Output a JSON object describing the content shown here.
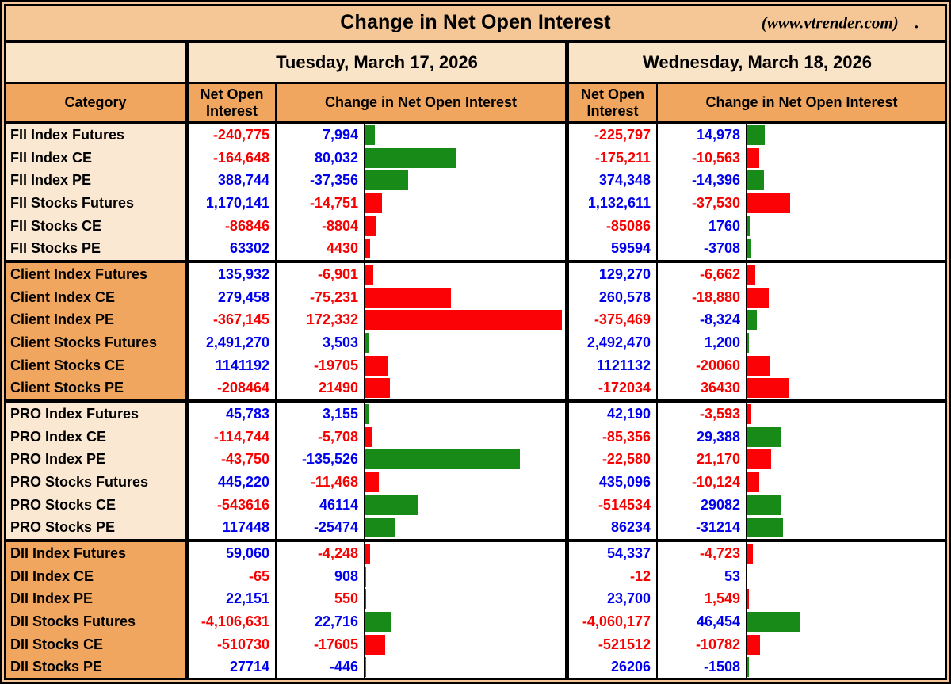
{
  "title": "Change in Net Open Interest",
  "source": "(www.vtrender.com)",
  "source_suffix": ".",
  "days": [
    {
      "label": "Tuesday, March 17, 2026"
    },
    {
      "label": "Wednesday, March 18, 2026"
    }
  ],
  "columns": {
    "category": "Category",
    "noi": "Net Open Interest",
    "change": "Change in Net Open Interest"
  },
  "colors": {
    "blue": "#0000EE",
    "red": "#F70000",
    "barGreen": "#188A18",
    "barRed": "#FB0207",
    "titleBg": "#F6C796",
    "dateBg": "#FAE4C8",
    "headerBg": "#F0A65E",
    "catLight": "#FAE8D2",
    "catOrange": "#F1A660"
  },
  "rows": [
    {
      "cat": "FII Index Futures",
      "grp": "light",
      "t": {
        "noi": "-240,775",
        "noiC": "r",
        "chg": "7,994",
        "chgC": "b",
        "val": 7994,
        "bar": "g"
      },
      "w": {
        "noi": "-225,797",
        "noiC": "r",
        "chg": "14,978",
        "chgC": "b",
        "val": 14978,
        "bar": "g"
      }
    },
    {
      "cat": "FII Index CE",
      "grp": "light",
      "t": {
        "noi": "-164,648",
        "noiC": "r",
        "chg": "80,032",
        "chgC": "b",
        "val": 80032,
        "bar": "g"
      },
      "w": {
        "noi": "-175,211",
        "noiC": "r",
        "chg": "-10,563",
        "chgC": "r",
        "val": -10563,
        "bar": "r"
      }
    },
    {
      "cat": "FII Index PE",
      "grp": "light",
      "t": {
        "noi": "388,744",
        "noiC": "b",
        "chg": "-37,356",
        "chgC": "b",
        "val": -37356,
        "bar": "g"
      },
      "w": {
        "noi": "374,348",
        "noiC": "b",
        "chg": "-14,396",
        "chgC": "b",
        "val": -14396,
        "bar": "g"
      }
    },
    {
      "cat": "FII Stocks Futures",
      "grp": "light",
      "t": {
        "noi": "1,170,141",
        "noiC": "b",
        "chg": "-14,751",
        "chgC": "r",
        "val": -14751,
        "bar": "r"
      },
      "w": {
        "noi": "1,132,611",
        "noiC": "b",
        "chg": "-37,530",
        "chgC": "r",
        "val": -37530,
        "bar": "r"
      }
    },
    {
      "cat": "FII Stocks CE",
      "grp": "light",
      "t": {
        "noi": "-86846",
        "noiC": "r",
        "chg": "-8804",
        "chgC": "r",
        "val": -8804,
        "bar": "r"
      },
      "w": {
        "noi": "-85086",
        "noiC": "r",
        "chg": "1760",
        "chgC": "b",
        "val": 1760,
        "bar": "g"
      }
    },
    {
      "cat": "FII Stocks PE",
      "grp": "light",
      "t": {
        "noi": "63302",
        "noiC": "b",
        "chg": "4430",
        "chgC": "r",
        "val": 4430,
        "bar": "r"
      },
      "w": {
        "noi": "59594",
        "noiC": "b",
        "chg": "-3708",
        "chgC": "b",
        "val": -3708,
        "bar": "g"
      }
    },
    {
      "cat": "Client Index Futures",
      "grp": "orange",
      "t": {
        "noi": "135,932",
        "noiC": "b",
        "chg": "-6,901",
        "chgC": "r",
        "val": -6901,
        "bar": "r"
      },
      "w": {
        "noi": "129,270",
        "noiC": "b",
        "chg": "-6,662",
        "chgC": "r",
        "val": -6662,
        "bar": "r"
      }
    },
    {
      "cat": "Client Index CE",
      "grp": "orange",
      "t": {
        "noi": "279,458",
        "noiC": "b",
        "chg": "-75,231",
        "chgC": "r",
        "val": -75231,
        "bar": "r"
      },
      "w": {
        "noi": "260,578",
        "noiC": "b",
        "chg": "-18,880",
        "chgC": "r",
        "val": -18880,
        "bar": "r"
      }
    },
    {
      "cat": "Client Index PE",
      "grp": "orange",
      "t": {
        "noi": "-367,145",
        "noiC": "r",
        "chg": "172,332",
        "chgC": "r",
        "val": 172332,
        "bar": "r"
      },
      "w": {
        "noi": "-375,469",
        "noiC": "r",
        "chg": "-8,324",
        "chgC": "b",
        "val": -8324,
        "bar": "g"
      }
    },
    {
      "cat": "Client Stocks Futures",
      "grp": "orange",
      "t": {
        "noi": "2,491,270",
        "noiC": "b",
        "chg": "3,503",
        "chgC": "b",
        "val": 3503,
        "bar": "g"
      },
      "w": {
        "noi": "2,492,470",
        "noiC": "b",
        "chg": "1,200",
        "chgC": "b",
        "val": 1200,
        "bar": "g"
      }
    },
    {
      "cat": "Client Stocks CE",
      "grp": "orange",
      "t": {
        "noi": "1141192",
        "noiC": "b",
        "chg": "-19705",
        "chgC": "r",
        "val": -19705,
        "bar": "r"
      },
      "w": {
        "noi": "1121132",
        "noiC": "b",
        "chg": "-20060",
        "chgC": "r",
        "val": -20060,
        "bar": "r"
      }
    },
    {
      "cat": "Client Stocks PE",
      "grp": "orange",
      "t": {
        "noi": "-208464",
        "noiC": "r",
        "chg": "21490",
        "chgC": "r",
        "val": 21490,
        "bar": "r"
      },
      "w": {
        "noi": "-172034",
        "noiC": "r",
        "chg": "36430",
        "chgC": "r",
        "val": 36430,
        "bar": "r"
      }
    },
    {
      "cat": "PRO Index Futures",
      "grp": "light",
      "t": {
        "noi": "45,783",
        "noiC": "b",
        "chg": "3,155",
        "chgC": "b",
        "val": 3155,
        "bar": "g"
      },
      "w": {
        "noi": "42,190",
        "noiC": "b",
        "chg": "-3,593",
        "chgC": "r",
        "val": -3593,
        "bar": "r"
      }
    },
    {
      "cat": "PRO Index CE",
      "grp": "light",
      "t": {
        "noi": "-114,744",
        "noiC": "r",
        "chg": "-5,708",
        "chgC": "r",
        "val": -5708,
        "bar": "r"
      },
      "w": {
        "noi": "-85,356",
        "noiC": "r",
        "chg": "29,388",
        "chgC": "b",
        "val": 29388,
        "bar": "g"
      }
    },
    {
      "cat": "PRO Index PE",
      "grp": "light",
      "t": {
        "noi": "-43,750",
        "noiC": "r",
        "chg": "-135,526",
        "chgC": "b",
        "val": -135526,
        "bar": "g"
      },
      "w": {
        "noi": "-22,580",
        "noiC": "r",
        "chg": "21,170",
        "chgC": "r",
        "val": 21170,
        "bar": "r"
      }
    },
    {
      "cat": "PRO Stocks Futures",
      "grp": "light",
      "t": {
        "noi": "445,220",
        "noiC": "b",
        "chg": "-11,468",
        "chgC": "r",
        "val": -11468,
        "bar": "r"
      },
      "w": {
        "noi": "435,096",
        "noiC": "b",
        "chg": "-10,124",
        "chgC": "r",
        "val": -10124,
        "bar": "r"
      }
    },
    {
      "cat": "PRO Stocks CE",
      "grp": "light",
      "t": {
        "noi": "-543616",
        "noiC": "r",
        "chg": "46114",
        "chgC": "b",
        "val": 46114,
        "bar": "g"
      },
      "w": {
        "noi": "-514534",
        "noiC": "r",
        "chg": "29082",
        "chgC": "b",
        "val": 29082,
        "bar": "g"
      }
    },
    {
      "cat": "PRO Stocks PE",
      "grp": "light",
      "t": {
        "noi": "117448",
        "noiC": "b",
        "chg": "-25474",
        "chgC": "b",
        "val": -25474,
        "bar": "g"
      },
      "w": {
        "noi": "86234",
        "noiC": "b",
        "chg": "-31214",
        "chgC": "b",
        "val": -31214,
        "bar": "g"
      }
    },
    {
      "cat": "DII Index Futures",
      "grp": "orange",
      "t": {
        "noi": "59,060",
        "noiC": "b",
        "chg": "-4,248",
        "chgC": "r",
        "val": -4248,
        "bar": "r"
      },
      "w": {
        "noi": "54,337",
        "noiC": "b",
        "chg": "-4,723",
        "chgC": "r",
        "val": -4723,
        "bar": "r"
      }
    },
    {
      "cat": "DII Index CE",
      "grp": "orange",
      "t": {
        "noi": "-65",
        "noiC": "r",
        "chg": "908",
        "chgC": "b",
        "val": 908,
        "bar": "g"
      },
      "w": {
        "noi": "-12",
        "noiC": "r",
        "chg": "53",
        "chgC": "b",
        "val": 53,
        "bar": "g"
      }
    },
    {
      "cat": "DII Index PE",
      "grp": "orange",
      "t": {
        "noi": "22,151",
        "noiC": "b",
        "chg": "550",
        "chgC": "r",
        "val": 550,
        "bar": "r"
      },
      "w": {
        "noi": "23,700",
        "noiC": "b",
        "chg": "1,549",
        "chgC": "r",
        "val": 1549,
        "bar": "r"
      }
    },
    {
      "cat": "DII Stocks Futures",
      "grp": "orange",
      "t": {
        "noi": "-4,106,631",
        "noiC": "r",
        "chg": "22,716",
        "chgC": "b",
        "val": 22716,
        "bar": "g"
      },
      "w": {
        "noi": "-4,060,177",
        "noiC": "r",
        "chg": "46,454",
        "chgC": "b",
        "val": 46454,
        "bar": "g"
      }
    },
    {
      "cat": "DII Stocks CE",
      "grp": "orange",
      "t": {
        "noi": "-510730",
        "noiC": "r",
        "chg": "-17605",
        "chgC": "r",
        "val": -17605,
        "bar": "r"
      },
      "w": {
        "noi": "-521512",
        "noiC": "r",
        "chg": "-10782",
        "chgC": "r",
        "val": -10782,
        "bar": "r"
      }
    },
    {
      "cat": "DII Stocks PE",
      "grp": "orange",
      "t": {
        "noi": "27714",
        "noiC": "b",
        "chg": "-446",
        "chgC": "b",
        "val": -446,
        "bar": "g"
      },
      "w": {
        "noi": "26206",
        "noiC": "b",
        "chg": "-1508",
        "chgC": "b",
        "val": -1508,
        "bar": "g"
      }
    }
  ],
  "chart_data": {
    "type": "table",
    "title": "Change in Net Open Interest",
    "subtitle_days": [
      "Tuesday, March 17, 2026",
      "Wednesday, March 18, 2026"
    ],
    "bar_style": "horizontal bars in change column; green = bullish change, red = bearish change; bar length proportional to |change|, max 172332",
    "categories": [
      "FII Index Futures",
      "FII Index CE",
      "FII Index PE",
      "FII Stocks Futures",
      "FII Stocks CE",
      "FII Stocks PE",
      "Client Index Futures",
      "Client Index CE",
      "Client Index PE",
      "Client Stocks Futures",
      "Client Stocks CE",
      "Client Stocks PE",
      "PRO Index Futures",
      "PRO Index CE",
      "PRO Index PE",
      "PRO Stocks Futures",
      "PRO Stocks CE",
      "PRO Stocks PE",
      "DII Index Futures",
      "DII Index CE",
      "DII Index PE",
      "DII Stocks Futures",
      "DII Stocks CE",
      "DII Stocks PE"
    ],
    "series": [
      {
        "name": "Tue Net Open Interest",
        "values": [
          -240775,
          -164648,
          388744,
          1170141,
          -86846,
          63302,
          135932,
          279458,
          -367145,
          2491270,
          1141192,
          -208464,
          45783,
          -114744,
          -43750,
          445220,
          -543616,
          117448,
          59060,
          -65,
          22151,
          -4106631,
          -510730,
          27714
        ]
      },
      {
        "name": "Tue Change in Net Open Interest",
        "values": [
          7994,
          80032,
          -37356,
          -14751,
          -8804,
          4430,
          -6901,
          -75231,
          172332,
          3503,
          -19705,
          21490,
          3155,
          -5708,
          -135526,
          -11468,
          46114,
          -25474,
          -4248,
          908,
          550,
          22716,
          -17605,
          -446
        ]
      },
      {
        "name": "Wed Net Open Interest",
        "values": [
          -225797,
          -175211,
          374348,
          1132611,
          -85086,
          59594,
          129270,
          260578,
          -375469,
          2492470,
          1121132,
          -172034,
          42190,
          -85356,
          -22580,
          435096,
          -514534,
          86234,
          54337,
          -12,
          23700,
          -4060177,
          -521512,
          26206
        ]
      },
      {
        "name": "Wed Change in Net Open Interest",
        "values": [
          14978,
          -10563,
          -14396,
          -37530,
          1760,
          -3708,
          -6662,
          -18880,
          -8324,
          1200,
          -20060,
          36430,
          -3593,
          29388,
          21170,
          -10124,
          29082,
          -31214,
          -4723,
          53,
          1549,
          46454,
          -10782,
          -1508
        ]
      }
    ]
  }
}
